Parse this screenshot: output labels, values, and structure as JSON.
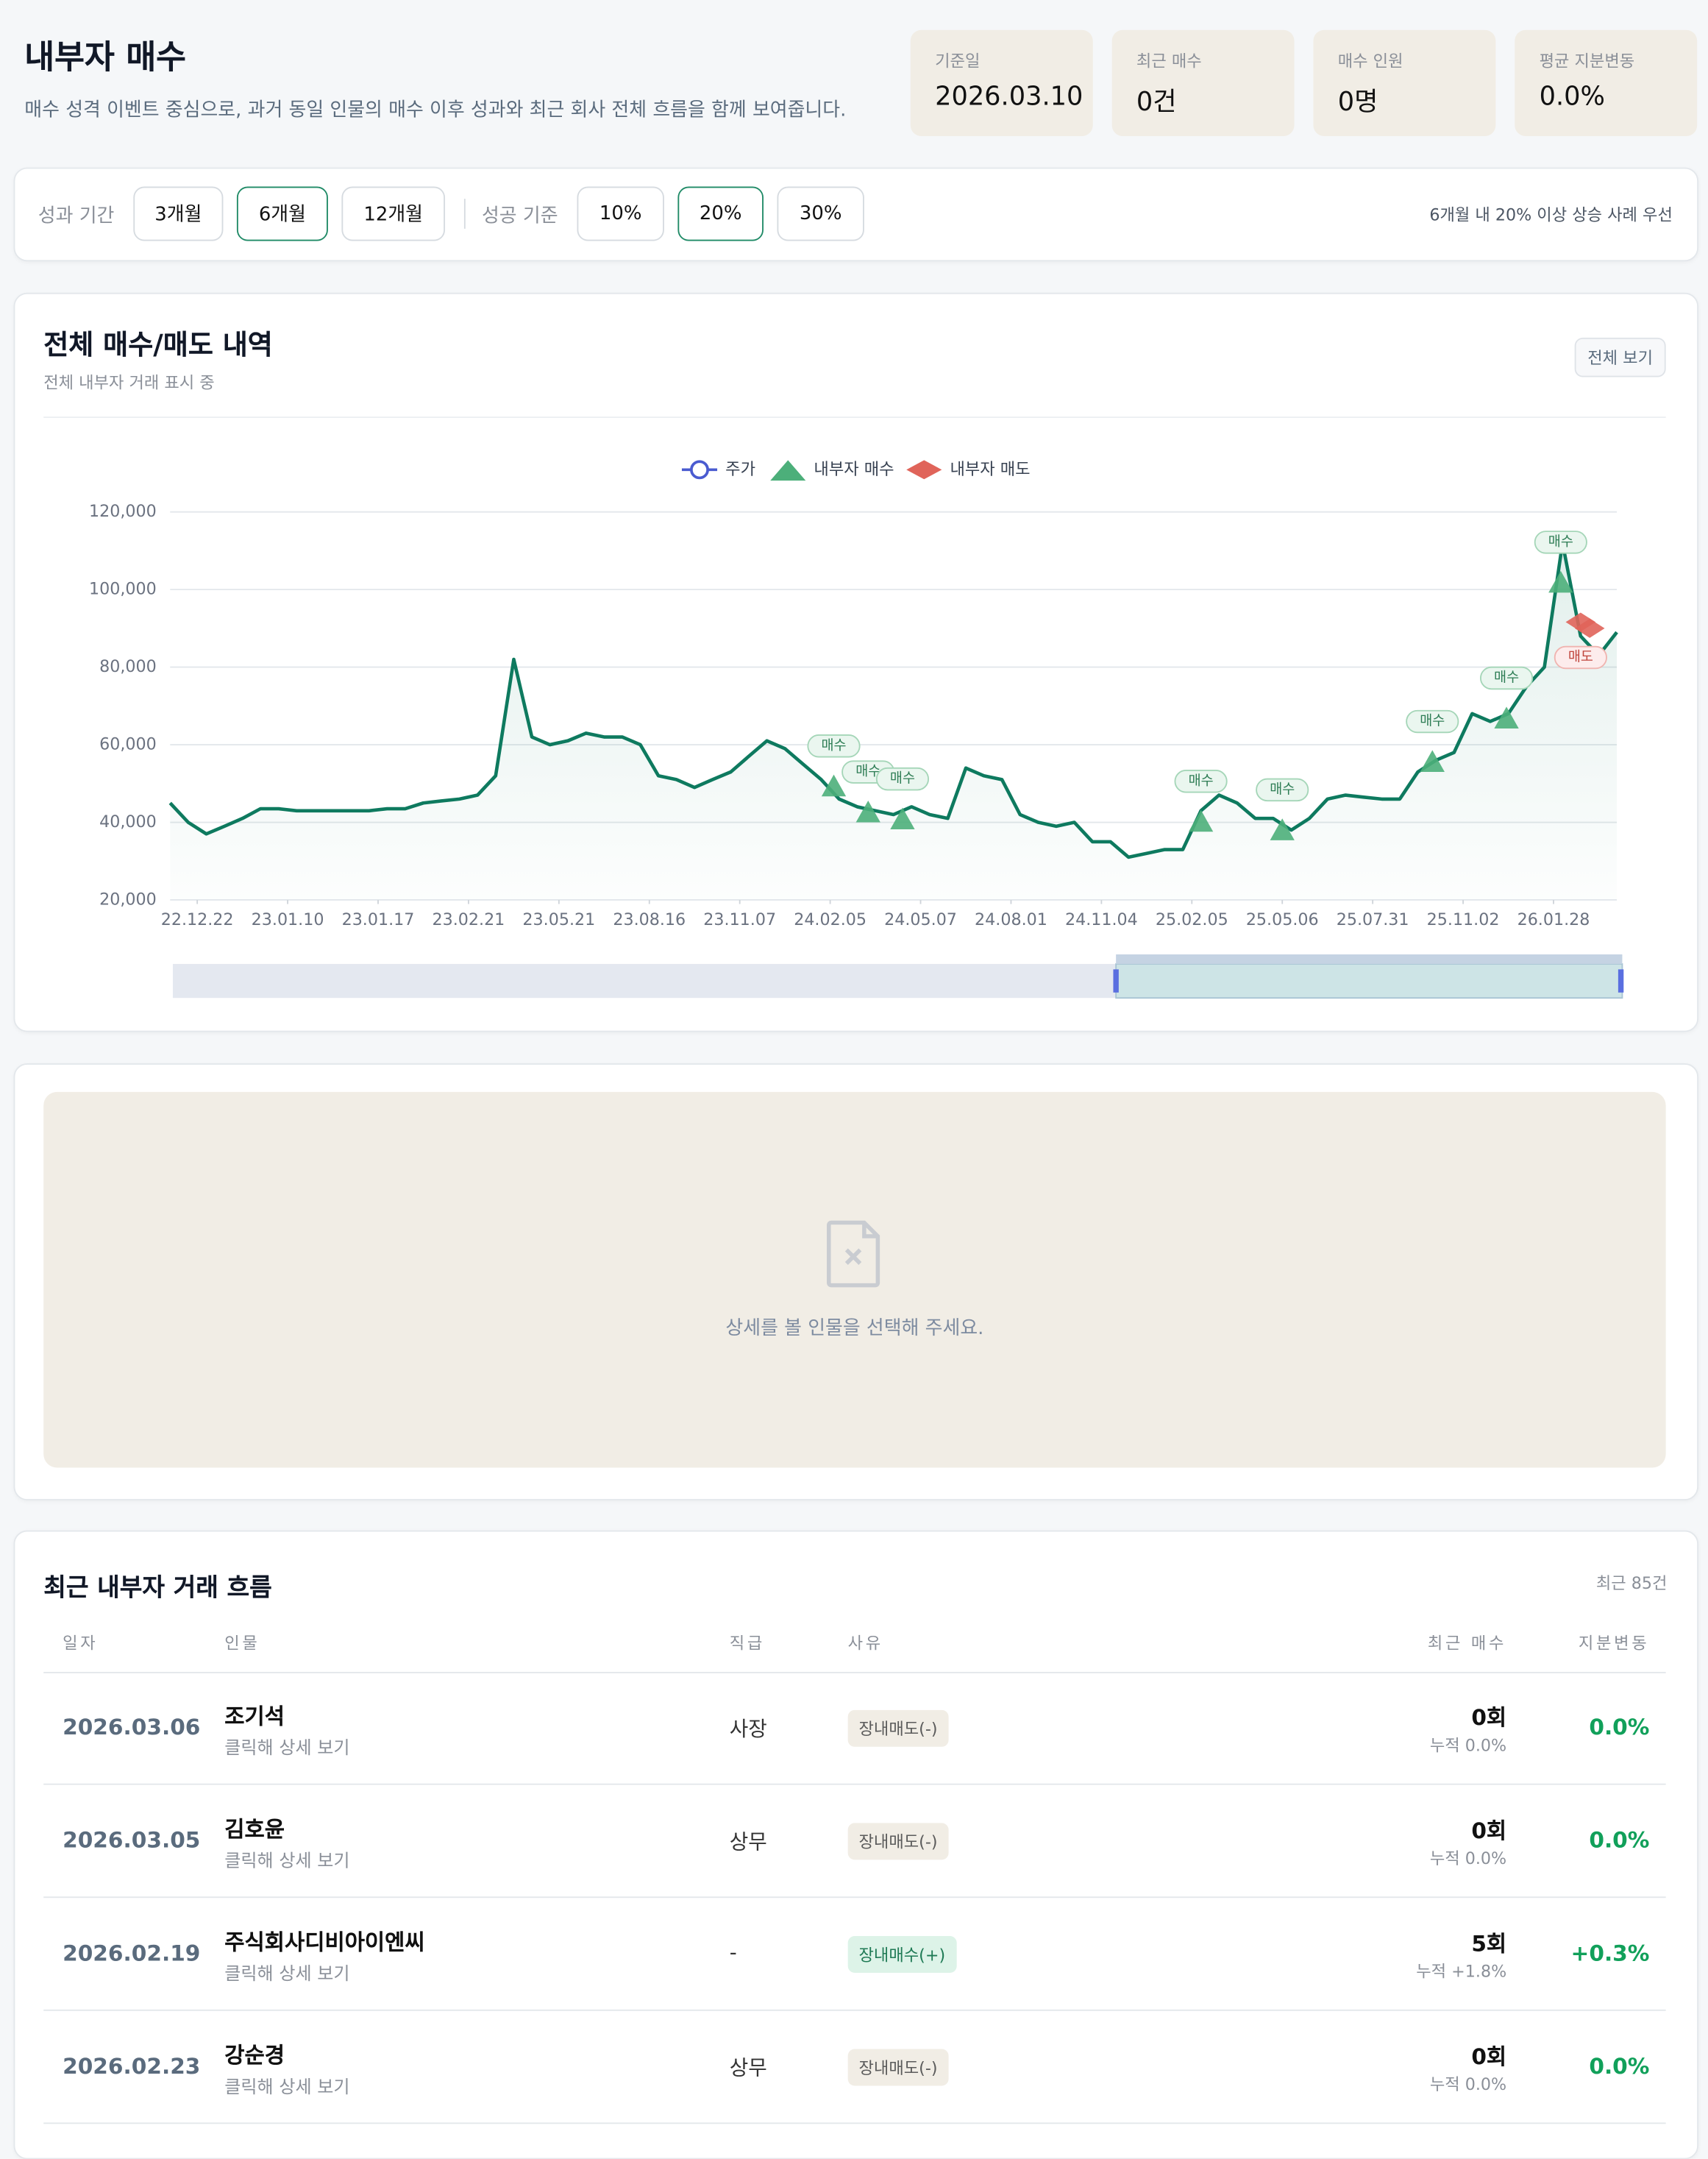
{
  "header": {
    "title": "내부자 매수",
    "subtitle": "매수 성격 이벤트 중심으로, 과거 동일 인물의 매수 이후 성과와 최근 회사 전체 흐름을 함께 보여줍니다."
  },
  "stats": [
    {
      "label": "기준일",
      "value": "2026.03.10"
    },
    {
      "label": "최근 매수",
      "value": "0건"
    },
    {
      "label": "매수 인원",
      "value": "0명"
    },
    {
      "label": "평균 지분변동",
      "value": "0.0%"
    }
  ],
  "filters": {
    "period_label": "성과 기간",
    "periods": [
      "3개월",
      "6개월",
      "12개월"
    ],
    "active_period": 1,
    "threshold_label": "성공 기준",
    "thresholds": [
      "10%",
      "20%",
      "30%"
    ],
    "active_threshold": 1,
    "note": "6개월 내 20% 이상 상승 사례 우선"
  },
  "chart_card": {
    "title": "전체 매수/매도 내역",
    "subtitle": "전체 내부자 거래 표시 중",
    "button": "전체 보기"
  },
  "chart_data": {
    "type": "line",
    "xlim": [
      0,
      80
    ],
    "xticks": [
      {
        "value": 1.5,
        "label": "22.12.22"
      },
      {
        "value": 6.5,
        "label": "23.01.10"
      },
      {
        "value": 11.5,
        "label": "23.01.17"
      },
      {
        "value": 16.5,
        "label": "23.02.21"
      },
      {
        "value": 21.5,
        "label": "23.05.21"
      },
      {
        "value": 26.5,
        "label": "23.08.16"
      },
      {
        "value": 31.5,
        "label": "23.11.07"
      },
      {
        "value": 36.5,
        "label": "24.02.05"
      },
      {
        "value": 41.5,
        "label": "24.05.07"
      },
      {
        "value": 46.5,
        "label": "24.08.01"
      },
      {
        "value": 51.5,
        "label": "24.11.04"
      },
      {
        "value": 56.5,
        "label": "25.02.05"
      },
      {
        "value": 61.5,
        "label": "25.05.06"
      },
      {
        "value": 66.5,
        "label": "25.07.31"
      },
      {
        "value": 71.5,
        "label": "25.11.02"
      },
      {
        "value": 76.5,
        "label": "26.01.28"
      }
    ],
    "ylim": [
      20000,
      120000
    ],
    "yticks": [
      {
        "value": 20000,
        "label": "20,000"
      },
      {
        "value": 40000,
        "label": "40,000"
      },
      {
        "value": 60000,
        "label": "60,000"
      },
      {
        "value": 80000,
        "label": "80,000"
      },
      {
        "value": 100000,
        "label": "100,000"
      },
      {
        "value": 120000,
        "label": "120,000"
      }
    ],
    "grid": true,
    "series": [
      {
        "name": "주가",
        "color": "#0e7a5f",
        "legend_color": "#4a5bd0",
        "values": [
          45000,
          40000,
          37000,
          39000,
          41000,
          43500,
          43500,
          43000,
          43000,
          43000,
          43000,
          43000,
          43500,
          43500,
          45000,
          45500,
          46000,
          47000,
          52000,
          82000,
          62000,
          60000,
          61000,
          63000,
          62000,
          62000,
          60000,
          52000,
          51000,
          49000,
          51000,
          53000,
          57000,
          61000,
          59000,
          55000,
          51000,
          46000,
          44000,
          43000,
          42000,
          44000,
          42000,
          41000,
          54000,
          52000,
          51000,
          42000,
          40000,
          39000,
          40000,
          35000,
          35000,
          31000,
          32000,
          33000,
          33000,
          43000,
          47000,
          45000,
          41000,
          41000,
          38000,
          41000,
          46000,
          47000,
          46500,
          46000,
          46000,
          53000,
          56000,
          58000,
          68000,
          66000,
          68000,
          75000,
          80000,
          112000,
          88000,
          83000,
          89000
        ]
      },
      {
        "name": "내부자 매수",
        "type": "scatter",
        "color": "#4caf7a",
        "x": [
          36.7,
          38.6,
          40.5,
          57.0,
          61.5,
          69.8,
          73.9,
          76.9
        ],
        "values": [
          49500,
          42800,
          41000,
          40400,
          38200,
          55800,
          67000,
          102000
        ],
        "point_labels": [
          "매수",
          "매수",
          "매수",
          "매수",
          "매수",
          "매수",
          "매수",
          "매수"
        ]
      },
      {
        "name": "내부자 매도",
        "type": "scatter",
        "color": "#e0645a",
        "x": [
          78.0,
          78.5
        ],
        "values": [
          91600,
          90000
        ],
        "point_labels": [
          "매도",
          null
        ]
      }
    ]
  },
  "empty_state": {
    "message": "상세를 볼 인물을 선택해 주세요."
  },
  "table": {
    "title": "최근 내부자 거래 흐름",
    "count": "최근 85건",
    "columns": [
      "일자",
      "인물",
      "직급",
      "사유",
      "최근 매수",
      "지분변동"
    ],
    "rows": [
      {
        "date": "2026.03.06",
        "name": "조기석",
        "hint": "클릭해 상세 보기",
        "position": "사장",
        "reason": "장내매도(-)",
        "badge_color": "#f1ede5",
        "badge_text_color": "#5b5b5b",
        "count": "0회",
        "cumulative": "누적 0.0%",
        "change": "0.0%"
      },
      {
        "date": "2026.03.05",
        "name": "김호윤",
        "hint": "클릭해 상세 보기",
        "position": "상무",
        "reason": "장내매도(-)",
        "badge_color": "#f1ede5",
        "badge_text_color": "#5b5b5b",
        "count": "0회",
        "cumulative": "누적 0.0%",
        "change": "0.0%"
      },
      {
        "date": "2026.02.19",
        "name": "주식회사디비아이엔씨",
        "hint": "클릭해 상세 보기",
        "position": "-",
        "reason": "장내매수(+)",
        "badge_color": "#ddf3e8",
        "badge_text_color": "#1f7a55",
        "count": "5회",
        "cumulative": "누적 +1.8%",
        "change": "+0.3%"
      },
      {
        "date": "2026.02.23",
        "name": "강순경",
        "hint": "클릭해 상세 보기",
        "position": "상무",
        "reason": "장내매도(-)",
        "badge_color": "#f1ede5",
        "badge_text_color": "#5b5b5b",
        "count": "0회",
        "cumulative": "누적 0.0%",
        "change": "0.0%"
      }
    ]
  }
}
